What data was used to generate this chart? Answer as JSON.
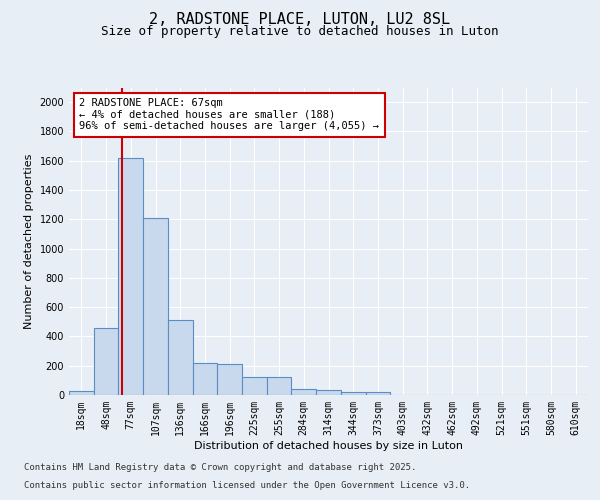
{
  "title1": "2, RADSTONE PLACE, LUTON, LU2 8SL",
  "title2": "Size of property relative to detached houses in Luton",
  "xlabel": "Distribution of detached houses by size in Luton",
  "ylabel": "Number of detached properties",
  "categories": [
    "18sqm",
    "48sqm",
    "77sqm",
    "107sqm",
    "136sqm",
    "166sqm",
    "196sqm",
    "225sqm",
    "255sqm",
    "284sqm",
    "314sqm",
    "344sqm",
    "373sqm",
    "403sqm",
    "432sqm",
    "462sqm",
    "492sqm",
    "521sqm",
    "551sqm",
    "580sqm",
    "610sqm"
  ],
  "values": [
    30,
    460,
    1620,
    1210,
    510,
    220,
    215,
    125,
    125,
    40,
    35,
    20,
    20,
    0,
    0,
    0,
    0,
    0,
    0,
    0,
    0
  ],
  "bar_color": "#c9d9ed",
  "bar_edge_color": "#5b8dc4",
  "vline_color": "#cc0000",
  "vline_pos": 1.65,
  "annotation_text": "2 RADSTONE PLACE: 67sqm\n← 4% of detached houses are smaller (188)\n96% of semi-detached houses are larger (4,055) →",
  "annotation_box_color": "#ffffff",
  "annotation_box_edge": "#cc0000",
  "ylim": [
    0,
    2100
  ],
  "yticks": [
    0,
    200,
    400,
    600,
    800,
    1000,
    1200,
    1400,
    1600,
    1800,
    2000
  ],
  "bg_color": "#e8eef5",
  "plot_bg": "#e8eef5",
  "footer1": "Contains HM Land Registry data © Crown copyright and database right 2025.",
  "footer2": "Contains public sector information licensed under the Open Government Licence v3.0.",
  "title1_fontsize": 11,
  "title2_fontsize": 9,
  "axis_fontsize": 8,
  "tick_fontsize": 7,
  "footer_fontsize": 6.5,
  "ann_fontsize": 7.5
}
